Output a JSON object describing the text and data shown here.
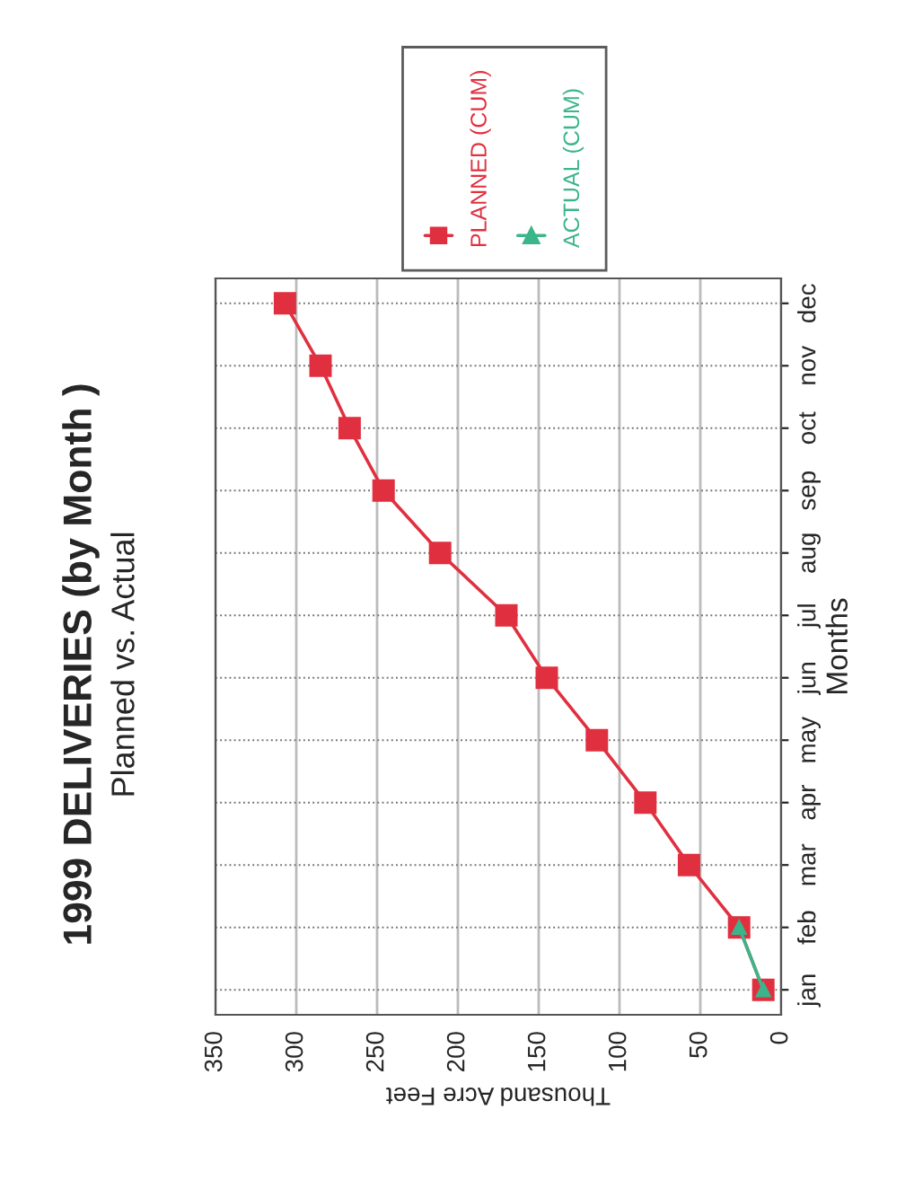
{
  "chart_data": {
    "type": "line",
    "orientation": "horizontal",
    "title": "1999 DELIVERIES (by Month )",
    "subtitle": "Planned vs. Actual",
    "xlabel": "Thousand Acre Feet",
    "ylabel": "Months",
    "categories": [
      "dec",
      "nov",
      "oct",
      "sep",
      "aug",
      "jul",
      "jun",
      "may",
      "apr",
      "mar",
      "feb",
      "jan"
    ],
    "series": [
      {
        "name": "PLANNED (CUM)",
        "color": "#e03040",
        "marker": "square",
        "values": [
          307,
          285,
          267,
          246,
          211,
          170,
          145,
          114,
          84,
          57,
          26,
          11
        ]
      },
      {
        "name": "ACTUAL (CUM)",
        "color": "#3bb58a",
        "marker": "triangle",
        "values": [
          null,
          null,
          null,
          null,
          null,
          null,
          null,
          null,
          null,
          null,
          26,
          11
        ]
      }
    ],
    "xlim": [
      350,
      0
    ],
    "xticks": [
      350,
      300,
      250,
      200,
      150,
      100,
      50,
      0
    ],
    "grid": true,
    "legend": "top right"
  }
}
